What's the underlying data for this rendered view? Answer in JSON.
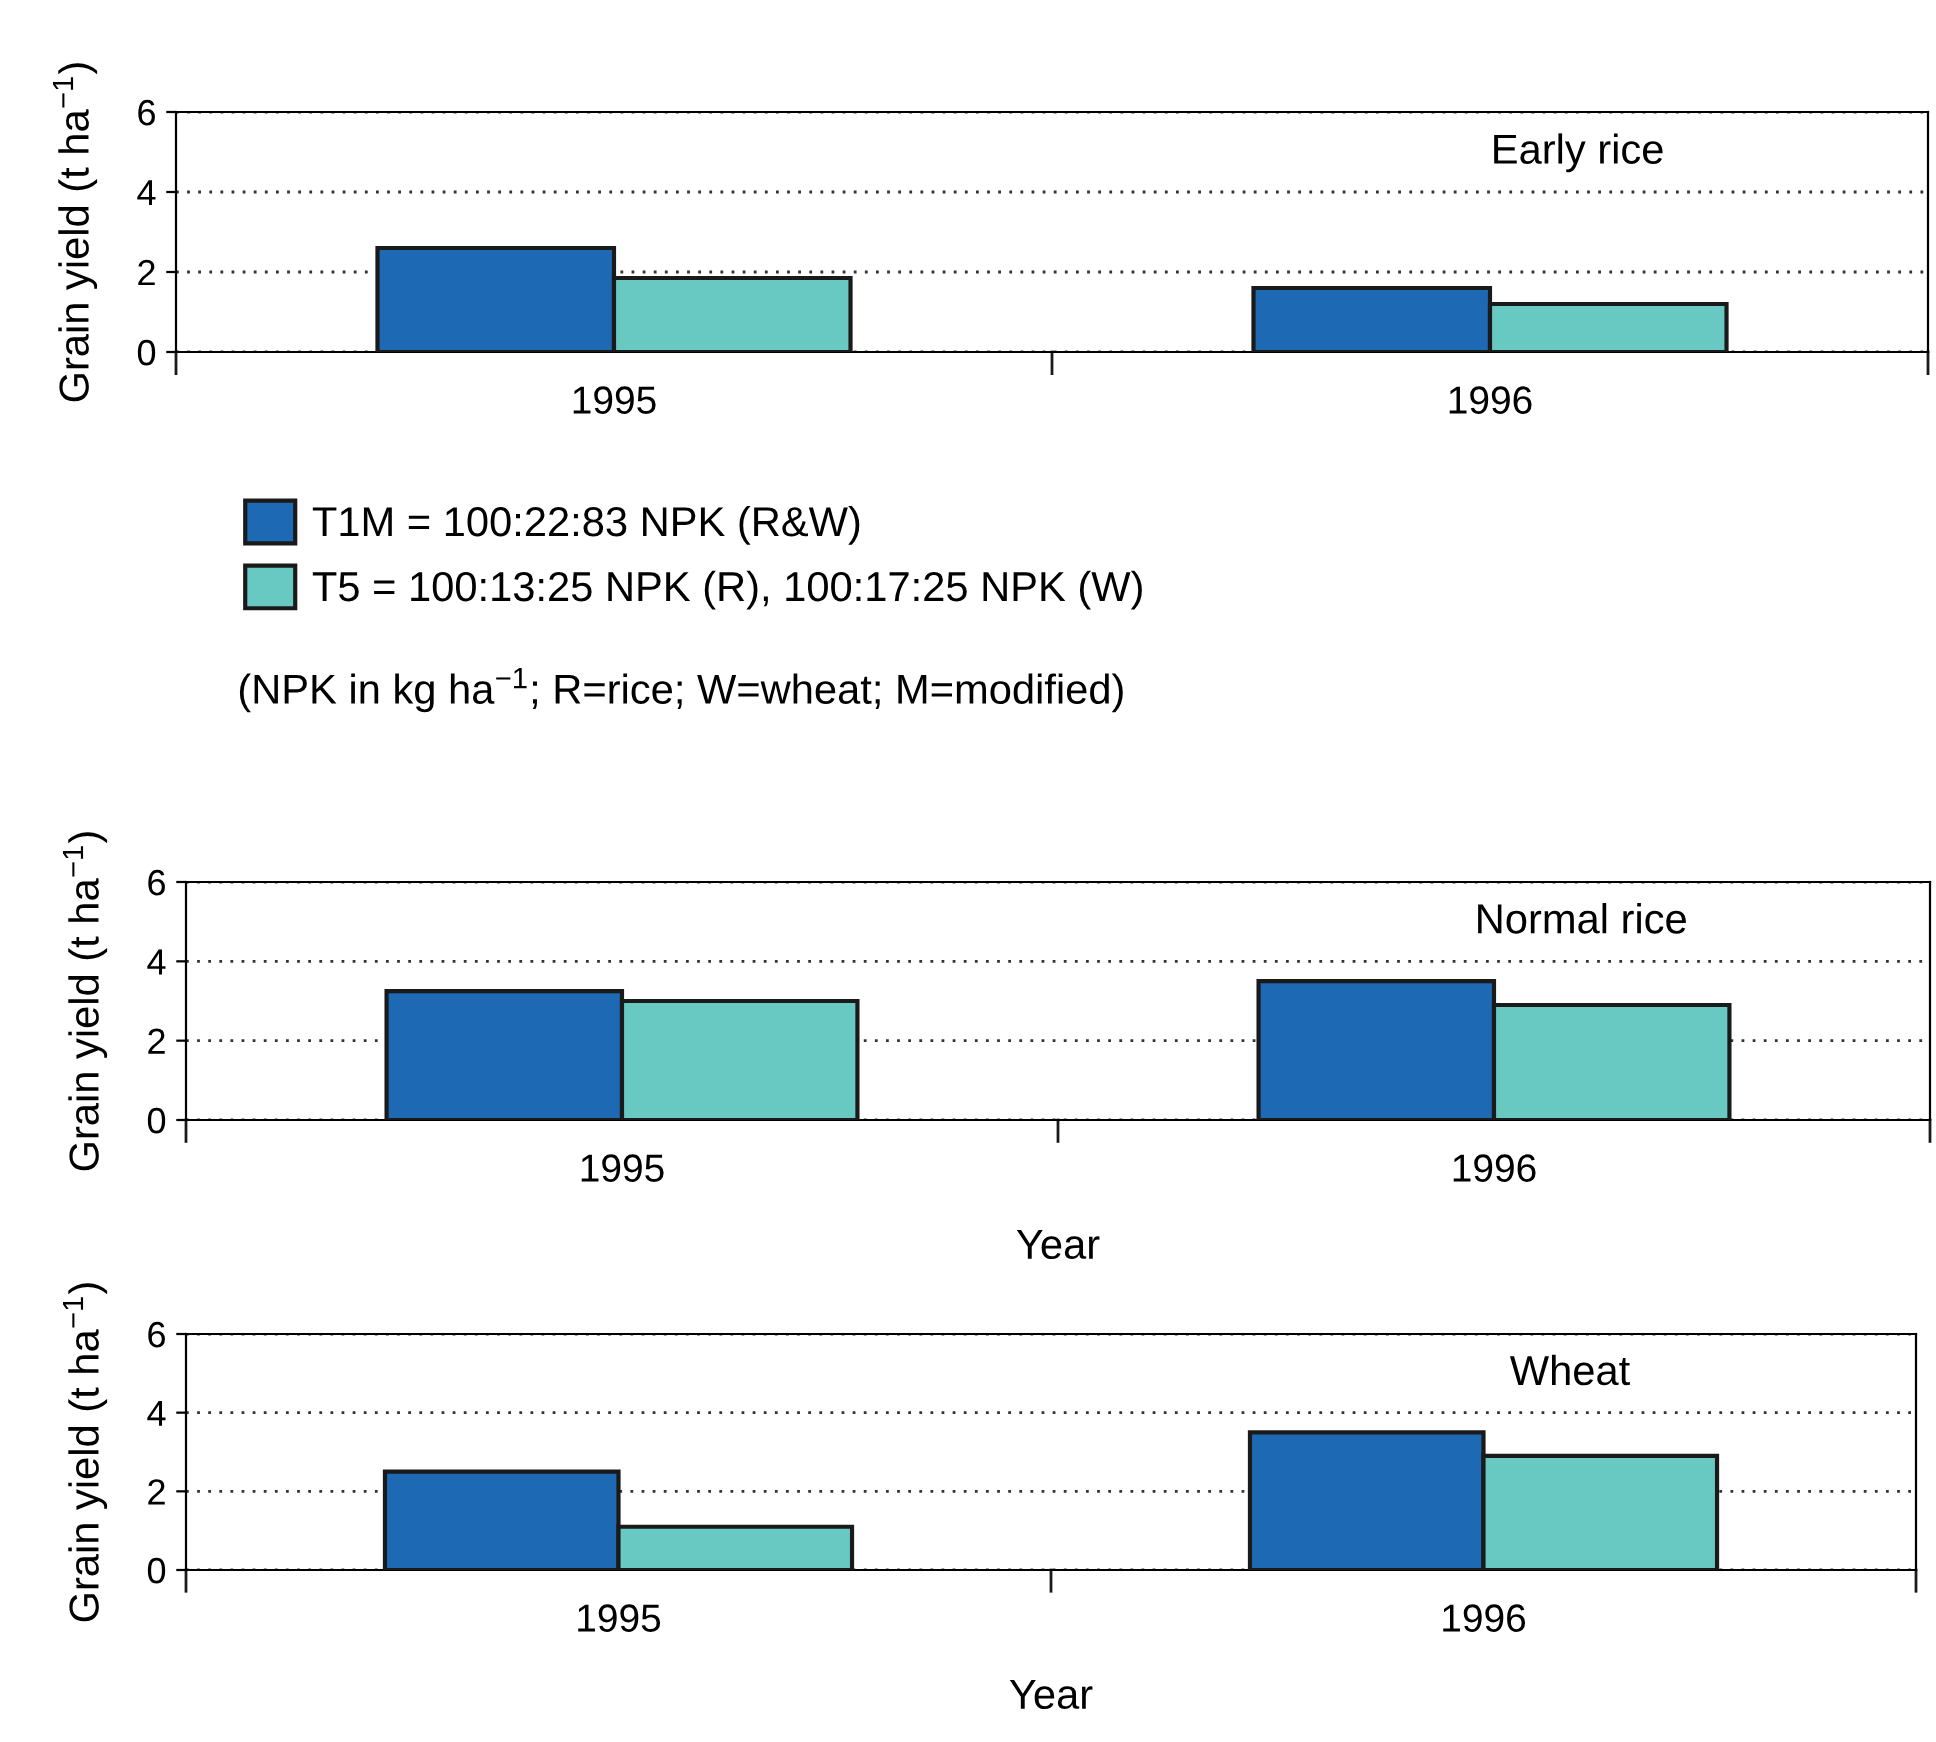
{
  "chart_data": [
    {
      "type": "bar",
      "categories": [
        "1995",
        "1996"
      ],
      "ylabel": "Grain yield (t ha$^{−1}$)",
      "ylim": [
        0,
        6
      ],
      "yticks": [
        0,
        2,
        4,
        6
      ],
      "grid": "y",
      "legend": "bottom",
      "annotations": [
        "Early rice",
        "(NPK in kg ha$^{−1}$; R=rice; W=wheat; M=modified)"
      ],
      "series": [
        {
          "name": "T1M = 100:22:83 NPK (R&W)",
          "color": "#1d69b4",
          "values": [
            2.6,
            1.6
          ]
        },
        {
          "name": "T5 = 100:13:25 NPK (R), 100:17:25 NPK (W)",
          "color": "#68c8c2",
          "values": [
            1.85,
            1.2
          ]
        }
      ]
    },
    {
      "type": "bar",
      "categories": [
        "1995",
        "1996"
      ],
      "ylabel": "Grain yield (t ha$^{−1}$)",
      "xlabel": "Year",
      "ylim": [
        0,
        6
      ],
      "yticks": [
        0,
        2,
        4,
        6
      ],
      "grid": "y",
      "annotations": [
        "Normal rice"
      ],
      "series": [
        {
          "color": "#1d69b4",
          "values": [
            3.25,
            3.5
          ]
        },
        {
          "color": "#68c8c2",
          "values": [
            3.0,
            2.9
          ]
        }
      ]
    },
    {
      "type": "bar",
      "categories": [
        "1995",
        "1996"
      ],
      "ylabel": "Grain yield (t ha$^{−1}$)",
      "xlabel": "Year",
      "ylim": [
        0,
        6
      ],
      "yticks": [
        0,
        2,
        4,
        6
      ],
      "grid": "y",
      "annotations": [
        "Wheat"
      ],
      "series": [
        {
          "color": "#1d69b4",
          "values": [
            2.5,
            3.5
          ]
        },
        {
          "color": "#68c8c2",
          "values": [
            1.1,
            2.9
          ]
        }
      ]
    }
  ]
}
